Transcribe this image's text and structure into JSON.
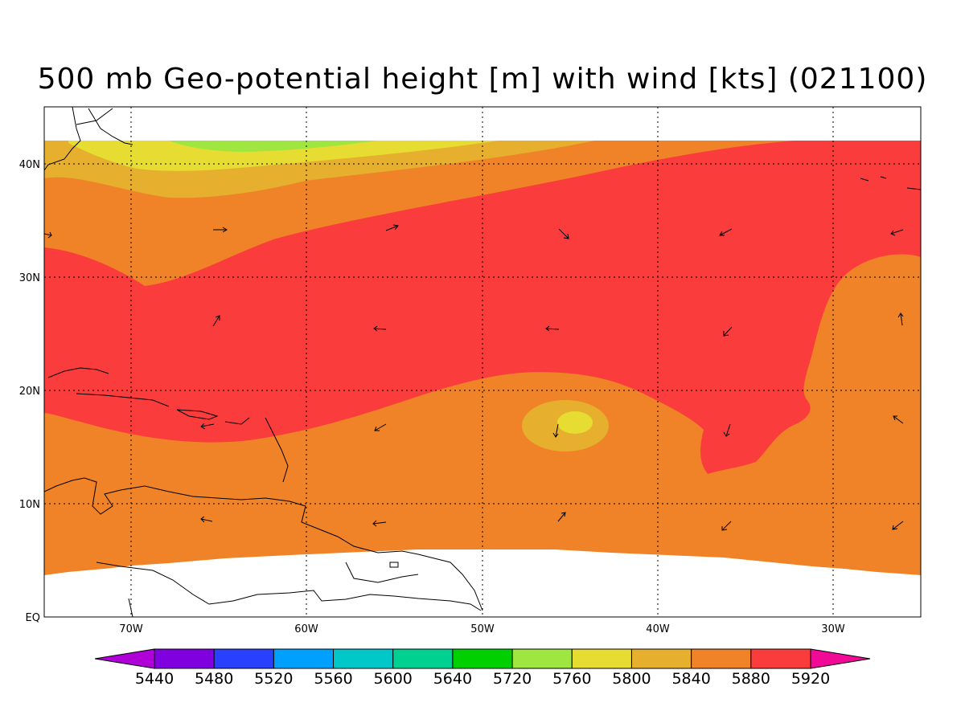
{
  "title": "500 mb Geo-potential height [m] with wind [kts] (021100)",
  "lat_labels": [
    "EQ",
    "10N",
    "20N",
    "30N",
    "40N"
  ],
  "lon_labels": [
    "70W",
    "60W",
    "50W",
    "40W",
    "30W"
  ],
  "colorbar": {
    "levels": [
      "5440",
      "5480",
      "5520",
      "5560",
      "5600",
      "5640",
      "5720",
      "5760",
      "5800",
      "5840",
      "5880",
      "5920"
    ],
    "colors": [
      "#b000d8",
      "#8000e0",
      "#2a40ff",
      "#00a0ff",
      "#00c8c8",
      "#00d090",
      "#00d000",
      "#a0e640",
      "#e6dc32",
      "#e6af2d",
      "#f08228",
      "#fa3c3c",
      "#f00a96"
    ]
  },
  "fill_colors": {
    "c5760": "#a0e640",
    "c5800": "#e6dc32",
    "c5840": "#e6af2d",
    "c5880": "#f08228",
    "c5920": "#fa3c3c"
  }
}
